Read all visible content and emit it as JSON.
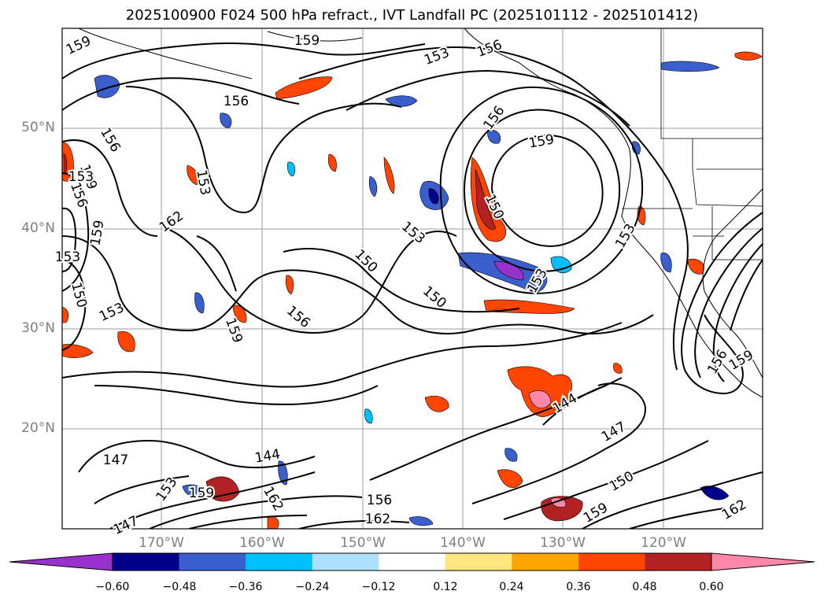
{
  "title": "2025100900 F024 500 hPa refract., IVT Landfall PC (2025101112 - 2025101412)",
  "lat_labels": [
    "50°N",
    "40°N",
    "30°N",
    "20°N"
  ],
  "lon_labels": [
    "170°W",
    "160°W",
    "150°W",
    "140°W",
    "130°W",
    "120°W"
  ],
  "contour_labels": [
    "159",
    "159",
    "153",
    "156",
    "156",
    "156",
    "159",
    "156",
    "156",
    "153",
    "159",
    "150",
    "162",
    "159",
    "153",
    "153",
    "153",
    "150",
    "150",
    "153",
    "153",
    "150",
    "156",
    "159",
    "153",
    "144",
    "144",
    "147",
    "147",
    "150",
    "153",
    "159",
    "162",
    "156",
    "162",
    "147",
    "159",
    "162",
    "156",
    "159"
  ],
  "colorbar": {
    "ticks": [
      "−0.60",
      "−0.48",
      "−0.36",
      "−0.24",
      "−0.12",
      "0.12",
      "0.24",
      "0.36",
      "0.48",
      "0.60"
    ],
    "colors": [
      "#9932CC",
      "#00008B",
      "#3A5FCD",
      "#00BFFF",
      "#ADDFFF",
      "#FFFFFF",
      "#FFE57F",
      "#FFA500",
      "#FF4500",
      "#B22222",
      "#FF88AA"
    ]
  }
}
